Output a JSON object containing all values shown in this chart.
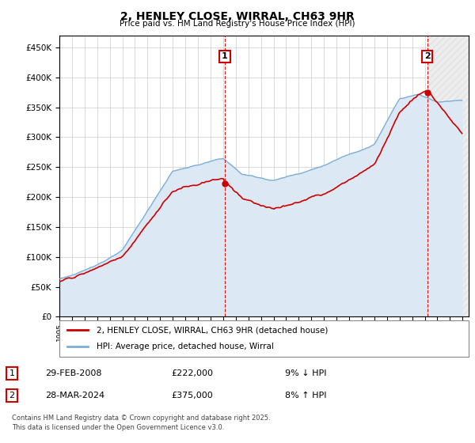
{
  "title": "2, HENLEY CLOSE, WIRRAL, CH63 9HR",
  "subtitle": "Price paid vs. HM Land Registry's House Price Index (HPI)",
  "ylim": [
    0,
    470000
  ],
  "yticks": [
    0,
    50000,
    100000,
    150000,
    200000,
    250000,
    300000,
    350000,
    400000,
    450000
  ],
  "xlim_start": 1995.0,
  "xlim_end": 2027.5,
  "sale1_year": 2008,
  "sale1_month": 2,
  "sale1_price": 222000,
  "sale1_label": "1",
  "sale2_year": 2024,
  "sale2_month": 3,
  "sale2_price": 375000,
  "sale2_label": "2",
  "legend_entry1": "2, HENLEY CLOSE, WIRRAL, CH63 9HR (detached house)",
  "legend_entry2": "HPI: Average price, detached house, Wirral",
  "table_row1": [
    "1",
    "29-FEB-2008",
    "£222,000",
    "9% ↓ HPI"
  ],
  "table_row2": [
    "2",
    "28-MAR-2024",
    "£375,000",
    "8% ↑ HPI"
  ],
  "footer": "Contains HM Land Registry data © Crown copyright and database right 2025.\nThis data is licensed under the Open Government Licence v3.0.",
  "line_color_property": "#cc0000",
  "line_color_hpi": "#7aaed6",
  "hpi_fill_color": "#dce9f5",
  "background_color": "#ffffff",
  "grid_color": "#cccccc"
}
